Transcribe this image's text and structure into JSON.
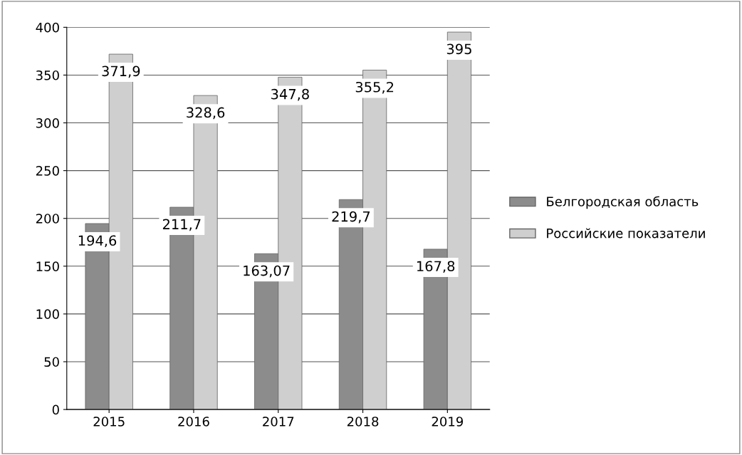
{
  "chart_data": {
    "type": "bar",
    "categories": [
      "2015",
      "2016",
      "2017",
      "2018",
      "2019"
    ],
    "series": [
      {
        "name": "Белгородская область",
        "color": "#8c8c8c",
        "values": [
          194.6,
          211.7,
          163.07,
          219.7,
          167.8
        ],
        "value_labels": [
          "194,6",
          "211,7",
          "163,07",
          "219,7",
          "167,8"
        ]
      },
      {
        "name": "Российские показатели",
        "color": "#cfcfcf",
        "values": [
          371.9,
          328.6,
          347.8,
          355.2,
          395
        ],
        "value_labels": [
          "371,9",
          "328,6",
          "347,8",
          "355,2",
          "395"
        ]
      }
    ],
    "ylim": [
      0,
      400
    ],
    "yticks": [
      0,
      50,
      100,
      150,
      200,
      250,
      300,
      350,
      400
    ],
    "grid": "y",
    "legend": "right"
  }
}
